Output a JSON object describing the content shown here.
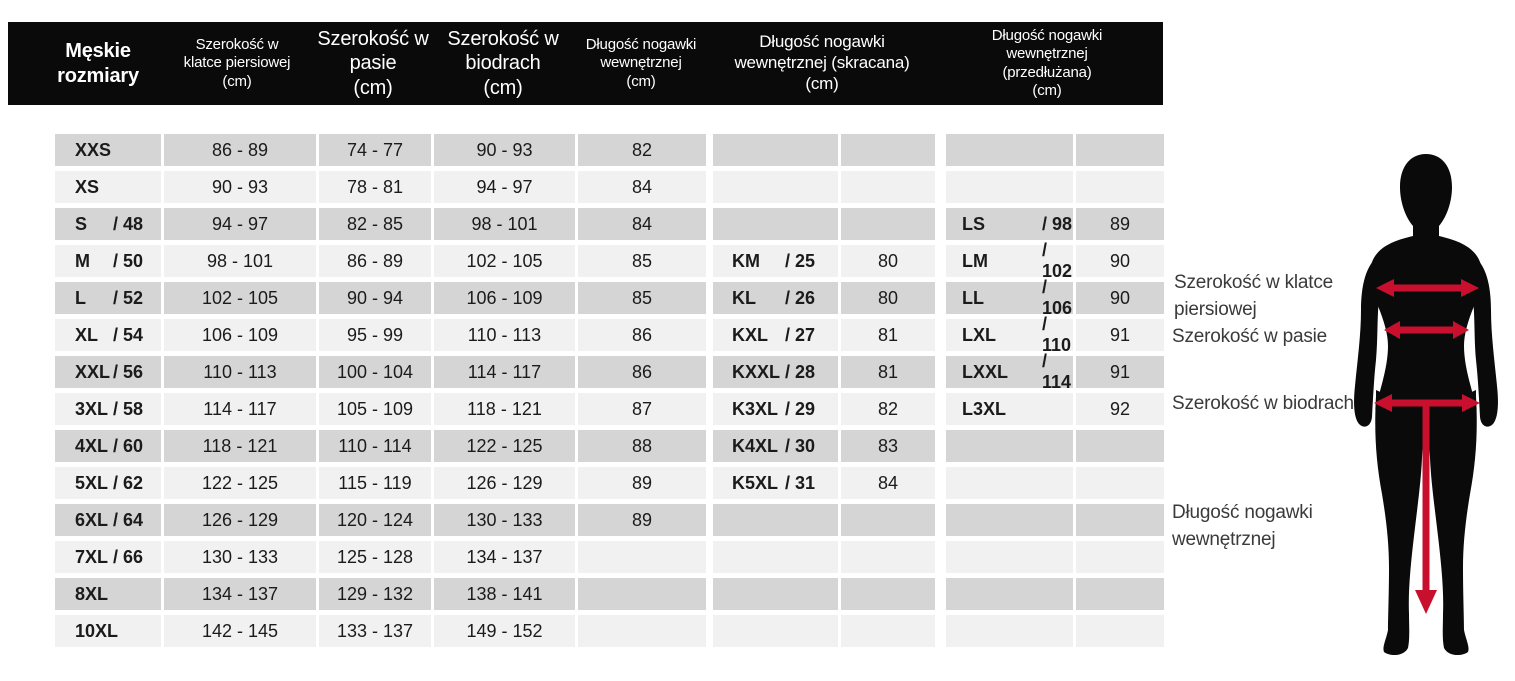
{
  "chart_data": {
    "type": "table",
    "title": "Męskie rozmiary",
    "columns": [
      {
        "text": "Męskie\nrozmiary"
      },
      {
        "text": "Szerokość w\nklatce piersiowej\n(cm)"
      },
      {
        "text": "Szerokość w\npasie\n(cm)"
      },
      {
        "text": "Szerokość w\nbiodrach\n(cm)"
      },
      {
        "text": "Długość nogawki\nwewnętrznej\n(cm)"
      },
      {
        "text": "Długość nogawki\nwewnętrznej (skracana)\n(cm)"
      },
      {
        "text": "Długość nogawki\nwewnętrznej\n(przedłużana)\n(cm)"
      }
    ],
    "rows": [
      {
        "size": "XXS",
        "variant": "",
        "chest": "86 - 89",
        "waist": "74 - 77",
        "hips": "90 - 93",
        "inseam": "82",
        "k_size": "",
        "k_variant": "",
        "k_inseam": "",
        "l_size": "",
        "l_variant": "",
        "l_inseam": ""
      },
      {
        "size": "XS",
        "variant": "",
        "chest": "90 - 93",
        "waist": "78 - 81",
        "hips": "94 - 97",
        "inseam": "84",
        "k_size": "",
        "k_variant": "",
        "k_inseam": "",
        "l_size": "",
        "l_variant": "",
        "l_inseam": ""
      },
      {
        "size": "S",
        "variant": "/ 48",
        "chest": "94 - 97",
        "waist": "82 - 85",
        "hips": "98 - 101",
        "inseam": "84",
        "k_size": "",
        "k_variant": "",
        "k_inseam": "",
        "l_size": "LS",
        "l_variant": "/ 98",
        "l_inseam": "89"
      },
      {
        "size": "M",
        "variant": "/ 50",
        "chest": "98 - 101",
        "waist": "86 - 89",
        "hips": "102 - 105",
        "inseam": "85",
        "k_size": "KM",
        "k_variant": "/ 25",
        "k_inseam": "80",
        "l_size": "LM",
        "l_variant": "/ 102",
        "l_inseam": "90"
      },
      {
        "size": "L",
        "variant": "/ 52",
        "chest": "102 - 105",
        "waist": "90 - 94",
        "hips": "106 - 109",
        "inseam": "85",
        "k_size": "KL",
        "k_variant": "/ 26",
        "k_inseam": "80",
        "l_size": "LL",
        "l_variant": "/ 106",
        "l_inseam": "90"
      },
      {
        "size": "XL",
        "variant": "/ 54",
        "chest": "106 - 109",
        "waist": "95 - 99",
        "hips": "110 - 113",
        "inseam": "86",
        "k_size": "KXL",
        "k_variant": "/ 27",
        "k_inseam": "81",
        "l_size": "LXL",
        "l_variant": "/ 110",
        "l_inseam": "91"
      },
      {
        "size": "XXL",
        "variant": "/ 56",
        "chest": "110 - 113",
        "waist": "100 - 104",
        "hips": "114 - 117",
        "inseam": "86",
        "k_size": "KXXL",
        "k_variant": "/ 28",
        "k_inseam": "81",
        "l_size": "LXXL",
        "l_variant": "/ 114",
        "l_inseam": "91"
      },
      {
        "size": "3XL",
        "variant": "/ 58",
        "chest": "114 - 117",
        "waist": "105 - 109",
        "hips": "118 - 121",
        "inseam": "87",
        "k_size": "K3XL",
        "k_variant": "/ 29",
        "k_inseam": "82",
        "l_size": "L3XL",
        "l_variant": "",
        "l_inseam": "92"
      },
      {
        "size": "4XL",
        "variant": "/ 60",
        "chest": "118 - 121",
        "waist": "110 - 114",
        "hips": "122 - 125",
        "inseam": "88",
        "k_size": "K4XL",
        "k_variant": "/ 30",
        "k_inseam": "83",
        "l_size": "",
        "l_variant": "",
        "l_inseam": ""
      },
      {
        "size": "5XL",
        "variant": "/ 62",
        "chest": "122 - 125",
        "waist": "115 - 119",
        "hips": "126 - 129",
        "inseam": "89",
        "k_size": "K5XL",
        "k_variant": "/ 31",
        "k_inseam": "84",
        "l_size": "",
        "l_variant": "",
        "l_inseam": ""
      },
      {
        "size": "6XL",
        "variant": "/ 64",
        "chest": "126 - 129",
        "waist": "120 - 124",
        "hips": "130 - 133",
        "inseam": "89",
        "k_size": "",
        "k_variant": "",
        "k_inseam": "",
        "l_size": "",
        "l_variant": "",
        "l_inseam": ""
      },
      {
        "size": "7XL",
        "variant": "/ 66",
        "chest": "130 - 133",
        "waist": "125 - 128",
        "hips": "134 - 137",
        "inseam": "",
        "k_size": "",
        "k_variant": "",
        "k_inseam": "",
        "l_size": "",
        "l_variant": "",
        "l_inseam": ""
      },
      {
        "size": "8XL",
        "variant": "",
        "chest": "134 - 137",
        "waist": "129 - 132",
        "hips": "138 - 141",
        "inseam": "",
        "k_size": "",
        "k_variant": "",
        "k_inseam": "",
        "l_size": "",
        "l_variant": "",
        "l_inseam": ""
      },
      {
        "size": "10XL",
        "variant": "",
        "chest": "142 - 145",
        "waist": "133 - 137",
        "hips": "149 - 152",
        "inseam": "",
        "k_size": "",
        "k_variant": "",
        "k_inseam": "",
        "l_size": "",
        "l_variant": "",
        "l_inseam": ""
      }
    ]
  },
  "figure": {
    "labels": {
      "chest": "Szerokość w klatce\npiersiowej",
      "waist": "Szerokość w pasie",
      "hips": "Szerokość w biodrach",
      "inseam": "Długość nogawki\nwewnętrznej"
    }
  },
  "colors": {
    "header_bg": "#0a0a0a",
    "row_dark": "#d5d5d5",
    "row_light": "#f1f1f2",
    "arrow_red": "#c8102e",
    "label_gray": "#3a3a3a"
  }
}
